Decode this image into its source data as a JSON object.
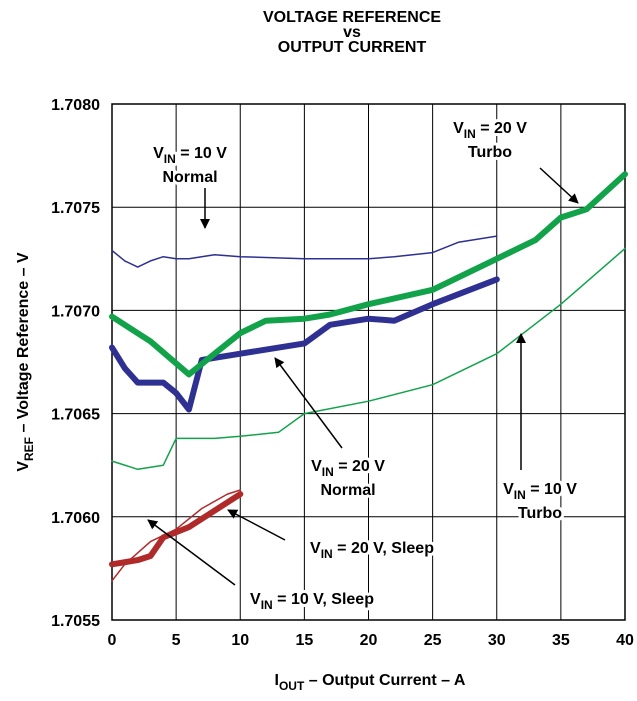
{
  "chart_data": {
    "type": "line",
    "title": [
      "VOLTAGE REFERENCE",
      "vs",
      "OUTPUT CURRENT"
    ],
    "xlabel": {
      "main": "I",
      "sub": "OUT",
      "rest": " – Output Current – A"
    },
    "ylabel": {
      "main": "V",
      "sub": "REF",
      "rest": " – Voltage Reference – V"
    },
    "xlim": [
      0,
      40
    ],
    "xticks": [
      0,
      5,
      10,
      15,
      20,
      25,
      30,
      35,
      40
    ],
    "ylim": [
      1.7055,
      1.708
    ],
    "yticks": [
      1.7055,
      {
        "value": 1.706,
        "label": "1.7060"
      },
      1.7065,
      {
        "value": 1.707,
        "label": "1.7070"
      },
      1.7075,
      {
        "value": 1.708,
        "label": "1.7080"
      }
    ],
    "grid": true,
    "series": [
      {
        "color": "#2e3192",
        "style": "thin",
        "x": [
          0,
          1,
          2,
          3,
          4,
          5,
          6,
          8,
          10,
          15,
          20,
          22,
          25,
          27,
          30
        ],
        "values": [
          1.70729,
          1.70724,
          1.70721,
          1.70724,
          1.70726,
          1.70725,
          1.70725,
          1.70727,
          1.70726,
          1.70725,
          1.70725,
          1.70726,
          1.70728,
          1.70733,
          1.70736
        ]
      },
      {
        "color": "#2e3192",
        "style": "thick",
        "x": [
          0,
          1,
          2,
          4,
          5,
          6,
          7,
          10,
          15,
          17,
          20,
          22,
          25,
          30
        ],
        "values": [
          1.70682,
          1.70672,
          1.70665,
          1.70665,
          1.7066,
          1.70652,
          1.70676,
          1.70679,
          1.70684,
          1.70693,
          1.70696,
          1.70695,
          1.70703,
          1.70715
        ]
      },
      {
        "color": "#12a24a",
        "style": "thick",
        "x": [
          0,
          3,
          6,
          8,
          10,
          12,
          15,
          17,
          20,
          25,
          30,
          33,
          35,
          37,
          40
        ],
        "values": [
          1.70697,
          1.70685,
          1.70669,
          1.70679,
          1.70689,
          1.70695,
          1.70696,
          1.70698,
          1.70703,
          1.7071,
          1.70725,
          1.70734,
          1.70745,
          1.70749,
          1.70766
        ]
      },
      {
        "color": "#12a24a",
        "style": "thin",
        "x": [
          0,
          2,
          4,
          5,
          8,
          10,
          13,
          15,
          20,
          25,
          30,
          35,
          40
        ],
        "values": [
          1.70627,
          1.70623,
          1.70625,
          1.70638,
          1.70638,
          1.70639,
          1.70641,
          1.7065,
          1.70656,
          1.70664,
          1.70679,
          1.70703,
          1.7073
        ]
      },
      {
        "color": "#b02a2a",
        "style": "thin",
        "x": [
          0,
          1,
          3,
          5,
          7,
          9,
          10
        ],
        "values": [
          1.70569,
          1.70577,
          1.70588,
          1.70594,
          1.70604,
          1.70611,
          1.70613
        ]
      },
      {
        "color": "#b02a2a",
        "style": "thick",
        "x": [
          0,
          2,
          3,
          4,
          6,
          8,
          10
        ],
        "values": [
          1.70577,
          1.70579,
          1.70581,
          1.7059,
          1.70595,
          1.70603,
          1.70611
        ]
      }
    ],
    "annotations": [
      {
        "main": "V",
        "sub": "IN",
        "rest": " = 10 V",
        "line2": "Normal"
      },
      {
        "main": "V",
        "sub": "IN",
        "rest": " = 20 V",
        "line2": "Turbo"
      },
      {
        "main": "V",
        "sub": "IN",
        "rest": " = 20 V",
        "line2": "Normal"
      },
      {
        "main": "V",
        "sub": "IN",
        "rest": " = 10 V",
        "line2": "Turbo"
      },
      {
        "main": "V",
        "sub": "IN",
        "rest": " = 20 V, Sleep"
      },
      {
        "main": "V",
        "sub": "IN",
        "rest": " = 10 V, Sleep"
      }
    ]
  }
}
